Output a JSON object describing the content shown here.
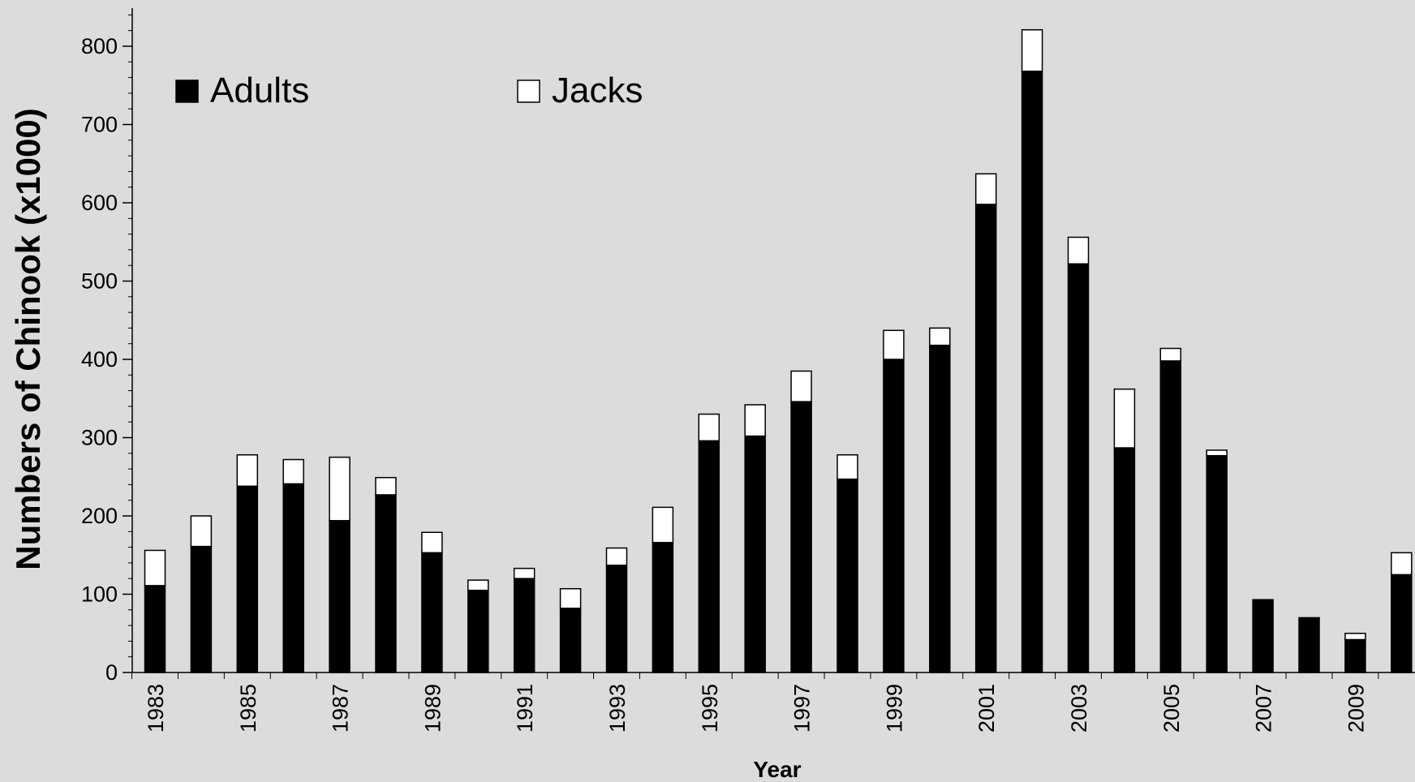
{
  "chart_data": {
    "type": "bar",
    "stacked": true,
    "xlabel": "Year",
    "ylabel": "Numbers of Chinook (x1000)",
    "ylim": [
      0,
      800
    ],
    "y_major_ticks": [
      0,
      100,
      200,
      300,
      400,
      500,
      600,
      700,
      800
    ],
    "y_minor_step": 20,
    "categories": [
      "1983",
      "1984",
      "1985",
      "1986",
      "1987",
      "1988",
      "1989",
      "1990",
      "1991",
      "1992",
      "1993",
      "1994",
      "1995",
      "1996",
      "1997",
      "1998",
      "1999",
      "2000",
      "2001",
      "2002",
      "2003",
      "2004",
      "2005",
      "2006",
      "2007",
      "2008",
      "2009",
      "2010"
    ],
    "x_tick_labels": [
      "1983",
      "1985",
      "1987",
      "1989",
      "1991",
      "1993",
      "1995",
      "1997",
      "1999",
      "2001",
      "2003",
      "2005",
      "2007",
      "2009"
    ],
    "series": [
      {
        "name": "Adults",
        "color": "#000000",
        "values": [
          111,
          161,
          238,
          241,
          194,
          227,
          153,
          105,
          120,
          82,
          137,
          166,
          296,
          302,
          346,
          247,
          400,
          418,
          598,
          768,
          522,
          287,
          398,
          277,
          93,
          70,
          42,
          125
        ]
      },
      {
        "name": "Jacks",
        "color": "#ffffff",
        "values": [
          45,
          39,
          40,
          31,
          81,
          22,
          26,
          13,
          13,
          25,
          22,
          45,
          34,
          40,
          39,
          31,
          37,
          22,
          39,
          53,
          34,
          75,
          16,
          7,
          0,
          0,
          8,
          28
        ]
      }
    ],
    "legend_position": "top-left",
    "grid": false,
    "background": "#dcdcdc"
  }
}
